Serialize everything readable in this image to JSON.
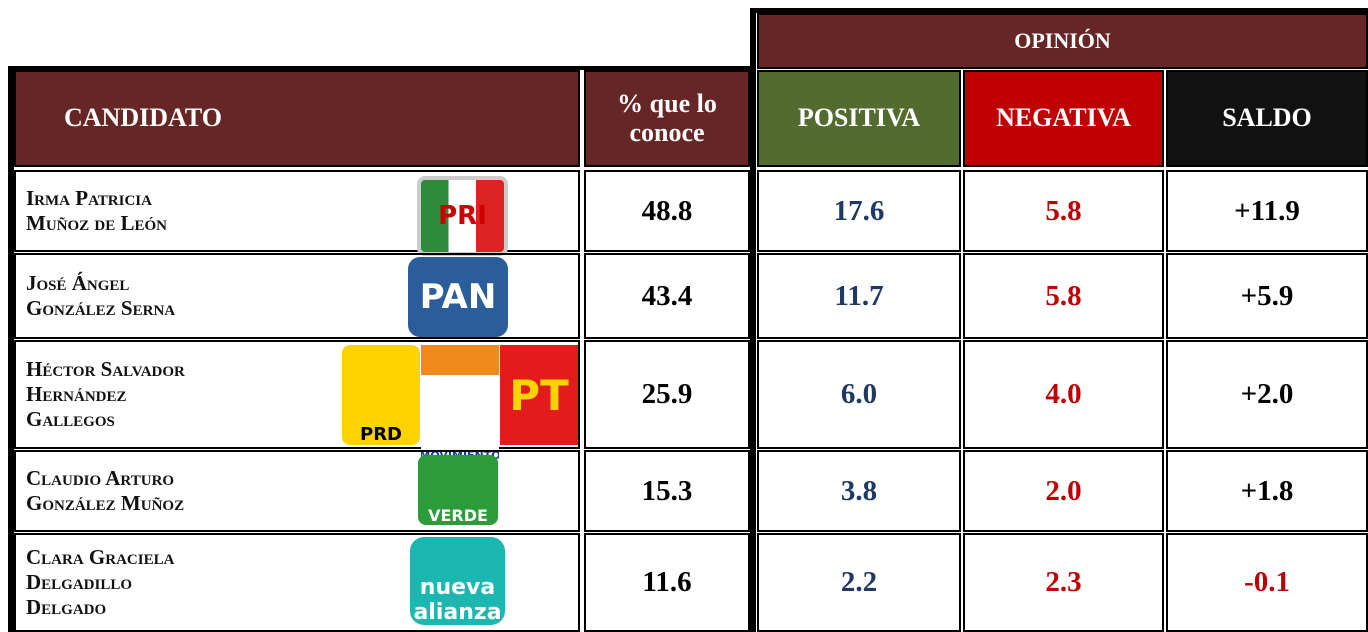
{
  "table": {
    "group_header": "OPINIÓN",
    "headers": [
      "CANDIDATO",
      "% que lo conoce",
      "POSITIVA",
      "NEGATIVA",
      "SALDO"
    ],
    "rows": [
      {
        "name": [
          "Irma Patricia",
          "Muñoz de León"
        ],
        "logos": [
          "PRI"
        ],
        "cells": [
          "48.8",
          "17.6",
          "5.8",
          "+11.9"
        ]
      },
      {
        "name": [
          "José Ángel",
          "González Serna"
        ],
        "logos": [
          "PAN"
        ],
        "cells": [
          "43.4",
          "11.7",
          "5.8",
          "+5.9"
        ]
      },
      {
        "name": [
          "Héctor Salvador",
          "Hernández",
          "Gallegos"
        ],
        "logos": [
          "PRD",
          "MOVIMIENTO CIUDADANO",
          "PT"
        ],
        "cells": [
          "25.9",
          "6.0",
          "4.0",
          "+2.0"
        ]
      },
      {
        "name": [
          "Claudio Arturo",
          "González Muñoz"
        ],
        "logos": [
          "VERDE"
        ],
        "cells": [
          "15.3",
          "3.8",
          "2.0",
          "+1.8"
        ]
      },
      {
        "name": [
          "Clara Graciela",
          "Delgadillo",
          "Delgado"
        ],
        "logos": [
          "nueva alianza"
        ],
        "cells": [
          "11.6",
          "2.2",
          "2.3",
          "-0.1"
        ]
      }
    ]
  }
}
